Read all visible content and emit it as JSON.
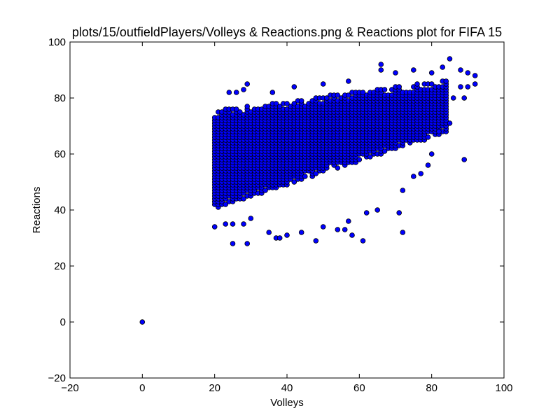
{
  "chart_data": {
    "type": "scatter",
    "title": "plots/15/outfieldPlayers/Volleys & Reactions.png & Reactions plot for FIFA 15",
    "xlabel": "Volleys",
    "ylabel": "Reactions",
    "xlim": [
      -20,
      100
    ],
    "ylim": [
      -20,
      100
    ],
    "x_ticks": [
      "−20",
      "0",
      "20",
      "40",
      "60",
      "80",
      "100"
    ],
    "y_ticks": [
      "−20",
      "0",
      "20",
      "40",
      "60",
      "80",
      "100"
    ],
    "grid": false,
    "marker_color": "#0000ff",
    "marker_edge_color": "#000000",
    "outliers": [
      {
        "x": 0,
        "y": 0
      },
      {
        "x": 20,
        "y": 34
      },
      {
        "x": 23,
        "y": 35
      },
      {
        "x": 25,
        "y": 28
      },
      {
        "x": 29,
        "y": 28
      },
      {
        "x": 25,
        "y": 35
      },
      {
        "x": 28,
        "y": 35
      },
      {
        "x": 30,
        "y": 37
      },
      {
        "x": 35,
        "y": 32
      },
      {
        "x": 37,
        "y": 30
      },
      {
        "x": 38,
        "y": 30
      },
      {
        "x": 40,
        "y": 31
      },
      {
        "x": 44,
        "y": 32
      },
      {
        "x": 48,
        "y": 29
      },
      {
        "x": 50,
        "y": 34
      },
      {
        "x": 54,
        "y": 33
      },
      {
        "x": 56,
        "y": 33
      },
      {
        "x": 58,
        "y": 31
      },
      {
        "x": 61,
        "y": 29
      },
      {
        "x": 57,
        "y": 36
      },
      {
        "x": 62,
        "y": 39
      },
      {
        "x": 65,
        "y": 40
      },
      {
        "x": 71,
        "y": 39
      },
      {
        "x": 72,
        "y": 32
      },
      {
        "x": 72,
        "y": 47
      },
      {
        "x": 75,
        "y": 52
      },
      {
        "x": 77,
        "y": 53
      },
      {
        "x": 79,
        "y": 56
      },
      {
        "x": 80,
        "y": 60
      },
      {
        "x": 89,
        "y": 58
      },
      {
        "x": 85,
        "y": 71
      },
      {
        "x": 82,
        "y": 68
      },
      {
        "x": 86,
        "y": 80
      },
      {
        "x": 89,
        "y": 80
      },
      {
        "x": 88,
        "y": 84
      },
      {
        "x": 90,
        "y": 84
      },
      {
        "x": 92,
        "y": 85
      },
      {
        "x": 92,
        "y": 88
      },
      {
        "x": 90,
        "y": 89
      },
      {
        "x": 88,
        "y": 90
      },
      {
        "x": 85,
        "y": 94
      },
      {
        "x": 83,
        "y": 91
      },
      {
        "x": 80,
        "y": 89
      },
      {
        "x": 75,
        "y": 90
      },
      {
        "x": 70,
        "y": 89
      },
      {
        "x": 66,
        "y": 92
      },
      {
        "x": 66,
        "y": 90
      },
      {
        "x": 57,
        "y": 86
      },
      {
        "x": 50,
        "y": 85
      },
      {
        "x": 42,
        "y": 84
      },
      {
        "x": 36,
        "y": 82
      },
      {
        "x": 29,
        "y": 85
      },
      {
        "x": 28,
        "y": 83
      },
      {
        "x": 26,
        "y": 82
      },
      {
        "x": 24,
        "y": 82
      }
    ],
    "dense_region": {
      "description_values": "Dense band of player points, Volleys 20–84, Reactions roughly 40–85",
      "x_min": 20,
      "x_max": 84,
      "y_lower_at_x_min": 41,
      "y_upper_at_x_min": 75,
      "y_lower_at_x_max": 68,
      "y_upper_at_x_max": 86
    }
  }
}
